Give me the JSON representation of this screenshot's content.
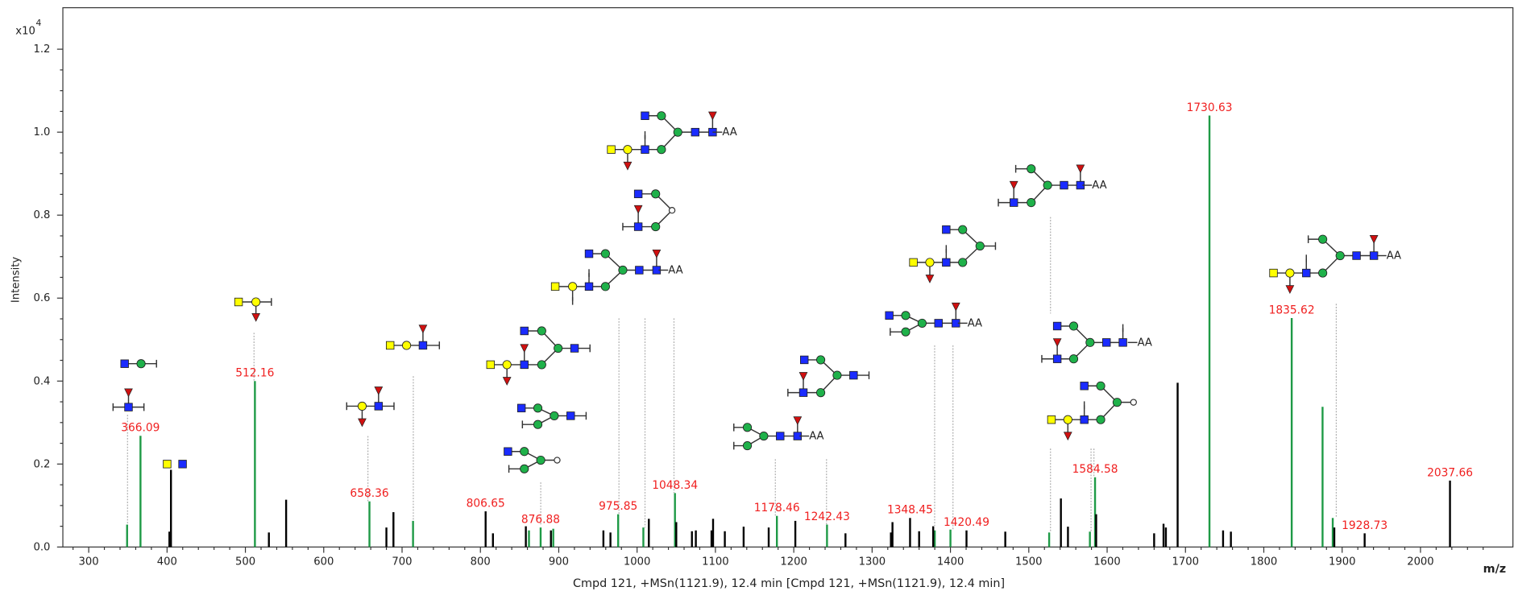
{
  "chart_data": {
    "type": "stem",
    "y_axis_label": "Intensity",
    "y_multiplier": "x10",
    "y_multiplier_exponent": "4",
    "x_axis_label": "m/z",
    "caption": "Cmpd 121, +MSn(1121.9), 12.4 min [Cmpd 121, +MSn(1121.9), 12.4 min]",
    "annotation_suffix": "AA",
    "label_color": "#f02020",
    "xlim": [
      267,
      2118
    ],
    "ylim": [
      0,
      1.3
    ],
    "xticks": [
      300,
      400,
      500,
      600,
      700,
      800,
      900,
      1000,
      1100,
      1200,
      1300,
      1400,
      1500,
      1600,
      1700,
      1800,
      1900,
      2000
    ],
    "yticks": [
      {
        "value": 0,
        "label": "0.0"
      },
      0.2,
      0.4,
      0.6,
      0.8,
      {
        "value": 1,
        "label": "1.0"
      },
      1.2
    ],
    "series": [
      {
        "color": "#1e9a46",
        "x": [
          349,
          366.09,
          512.16,
          658.36,
          714,
          862,
          876.88,
          893,
          975.85,
          1008,
          1048.34,
          1178.46,
          1242.43,
          1380,
          1400,
          1526,
          1578,
          1584.58,
          1730.63,
          1835.62,
          1875,
          1888
        ],
        "values": [
          0.054,
          0.268,
          0.4,
          0.11,
          0.063,
          0.04,
          0.047,
          0.044,
          0.079,
          0.047,
          0.13,
          0.075,
          0.054,
          0.04,
          0.042,
          0.035,
          0.037,
          0.168,
          1.04,
          0.552,
          0.338,
          0.07
        ],
        "x_labels": [
          null,
          "366.09",
          "512.16",
          "658.36",
          null,
          null,
          "876.88",
          null,
          "975.85",
          null,
          "1048.34",
          "1178.46",
          "1242.43",
          null,
          null,
          null,
          null,
          "1584.58",
          "1730.63",
          "1835.62",
          null,
          null
        ]
      },
      {
        "color": "#000000",
        "x": [
          403,
          405,
          530,
          552,
          680,
          689,
          806.65,
          816,
          858,
          890,
          957,
          966,
          1015,
          1050,
          1070,
          1075,
          1095,
          1097,
          1112,
          1136,
          1168,
          1202,
          1266,
          1324,
          1326,
          1348.45,
          1360,
          1378,
          1420.49,
          1470,
          1541,
          1550,
          1586,
          1660,
          1672,
          1675,
          1690,
          1748,
          1758,
          1890,
          1928.73,
          2037.66
        ],
        "values": [
          0.037,
          0.186,
          0.035,
          0.114,
          0.047,
          0.084,
          0.086,
          0.033,
          0.05,
          0.04,
          0.04,
          0.035,
          0.068,
          0.06,
          0.038,
          0.04,
          0.04,
          0.068,
          0.038,
          0.049,
          0.047,
          0.063,
          0.033,
          0.035,
          0.06,
          0.07,
          0.038,
          0.05,
          0.04,
          0.037,
          0.117,
          0.049,
          0.079,
          0.033,
          0.056,
          0.047,
          0.396,
          0.04,
          0.037,
          0.047,
          0.033,
          0.16
        ],
        "x_labels": [
          null,
          null,
          null,
          null,
          null,
          null,
          "806.65",
          null,
          null,
          null,
          null,
          null,
          null,
          null,
          null,
          null,
          null,
          null,
          null,
          null,
          null,
          null,
          null,
          null,
          null,
          "1348.45",
          null,
          null,
          "1420.49",
          null,
          null,
          null,
          null,
          null,
          null,
          null,
          null,
          null,
          null,
          null,
          "1928.73",
          "2037.66"
        ]
      }
    ]
  }
}
